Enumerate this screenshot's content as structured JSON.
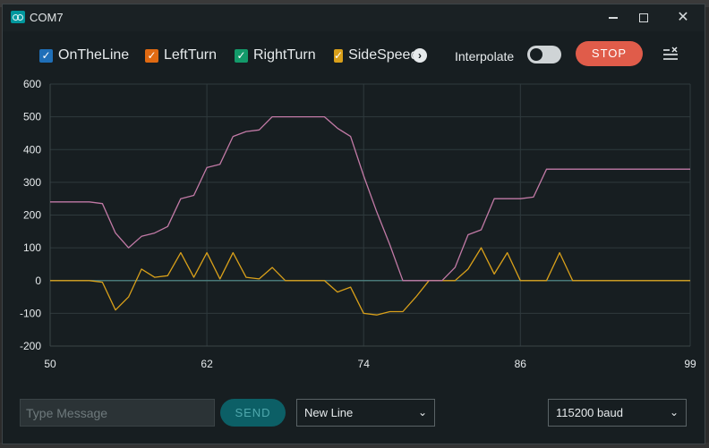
{
  "window": {
    "title": "COM7"
  },
  "toolbar": {
    "series": [
      {
        "label": "OnTheLine",
        "color": "#1f6fb8",
        "checked": true
      },
      {
        "label": "LeftTurn",
        "color": "#e06a12",
        "checked": true
      },
      {
        "label": "RightTurn",
        "color": "#139a6a",
        "checked": true
      },
      {
        "label": "SideSpeed",
        "color": "#d9a01a",
        "checked": true
      }
    ],
    "interpolate_label": "Interpolate",
    "interpolate_on": false,
    "stop_label": "STOP"
  },
  "chart_data": {
    "type": "line",
    "xlim": [
      50,
      99
    ],
    "ylim": [
      -200,
      600
    ],
    "x_ticks": [
      50,
      62,
      74,
      86,
      99
    ],
    "y_ticks": [
      600,
      500,
      400,
      300,
      200,
      100,
      0,
      -100,
      -200
    ],
    "grid": true,
    "series": [
      {
        "name": "OnTheLine",
        "color": "#2a88c9",
        "x": [
          50,
          99
        ],
        "y": [
          0,
          0
        ]
      },
      {
        "name": "RightTurn",
        "color": "#4d7a74",
        "x": [
          50,
          99
        ],
        "y": [
          0,
          0
        ]
      },
      {
        "name": "SideSpeed",
        "color": "#d9a01a",
        "x": [
          50,
          51,
          52,
          53,
          54,
          55,
          56,
          57,
          58,
          59,
          60,
          61,
          62,
          63,
          64,
          65,
          66,
          67,
          68,
          69,
          70,
          71,
          72,
          73,
          74,
          75,
          76,
          77,
          78,
          79,
          80,
          81,
          82,
          83,
          84,
          85,
          86,
          87,
          88,
          89,
          90,
          91,
          92,
          93,
          94,
          95,
          96,
          97,
          98,
          99
        ],
        "y": [
          0,
          0,
          0,
          0,
          -5,
          -90,
          -50,
          35,
          10,
          15,
          85,
          10,
          85,
          5,
          85,
          10,
          5,
          40,
          0,
          0,
          0,
          0,
          -35,
          -20,
          -100,
          -105,
          -95,
          -95,
          -50,
          0,
          0,
          0,
          35,
          100,
          20,
          85,
          0,
          0,
          0,
          85,
          0,
          0,
          0,
          0,
          0,
          0,
          0,
          0,
          0,
          0
        ]
      },
      {
        "name": "LeftTurn",
        "color": "#c27aa6",
        "x": [
          50,
          51,
          52,
          53,
          54,
          55,
          56,
          57,
          58,
          59,
          60,
          61,
          62,
          63,
          64,
          65,
          66,
          67,
          68,
          69,
          70,
          71,
          72,
          73,
          74,
          75,
          76,
          77,
          78,
          79,
          80,
          81,
          82,
          83,
          84,
          85,
          86,
          87,
          88,
          89,
          90,
          91,
          92,
          93,
          94,
          95,
          96,
          97,
          98,
          99
        ],
        "y": [
          240,
          240,
          240,
          240,
          235,
          145,
          100,
          135,
          145,
          165,
          250,
          260,
          345,
          355,
          440,
          455,
          460,
          500,
          500,
          500,
          500,
          500,
          465,
          440,
          320,
          210,
          110,
          0,
          0,
          0,
          0,
          40,
          140,
          155,
          250,
          250,
          250,
          255,
          340,
          340,
          340,
          340,
          340,
          340,
          340,
          340,
          340,
          340,
          340,
          340
        ]
      }
    ]
  },
  "footer": {
    "message_placeholder": "Type Message",
    "send_label": "SEND",
    "line_ending": "New Line",
    "baud": "115200 baud"
  }
}
